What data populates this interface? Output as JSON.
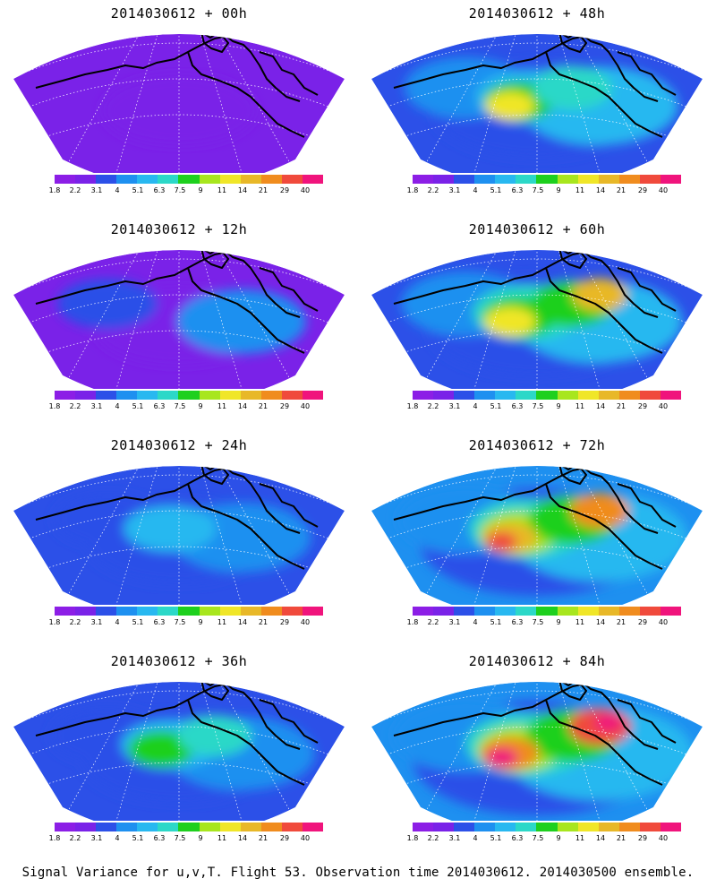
{
  "colorbar": {
    "ticks": [
      "1.8",
      "2.2",
      "3.1",
      "4",
      "5.1",
      "6.3",
      "7.5",
      "9",
      "11",
      "14",
      "21",
      "29",
      "40"
    ],
    "colors": [
      "#8c1ee6",
      "#7a22e8",
      "#2c50e8",
      "#1e90f0",
      "#28b8f0",
      "#2cd8c8",
      "#1ed01e",
      "#a8e61e",
      "#f0e628",
      "#e8b828",
      "#f08c1e",
      "#f04a3c",
      "#f0147c"
    ]
  },
  "panels": [
    {
      "title": "2014030612 + 00h",
      "intensity": 0.05
    },
    {
      "title": "2014030612 + 48h",
      "intensity": 0.55
    },
    {
      "title": "2014030612 + 12h",
      "intensity": 0.2
    },
    {
      "title": "2014030612 + 60h",
      "intensity": 0.65
    },
    {
      "title": "2014030612 + 24h",
      "intensity": 0.32
    },
    {
      "title": "2014030612 + 72h",
      "intensity": 0.78
    },
    {
      "title": "2014030612 + 36h",
      "intensity": 0.42
    },
    {
      "title": "2014030612 + 84h",
      "intensity": 0.92
    }
  ],
  "footer": "Signal Variance for u,v,T. Flight 53. Observation time 2014030612. 2014030500 ensemble."
}
